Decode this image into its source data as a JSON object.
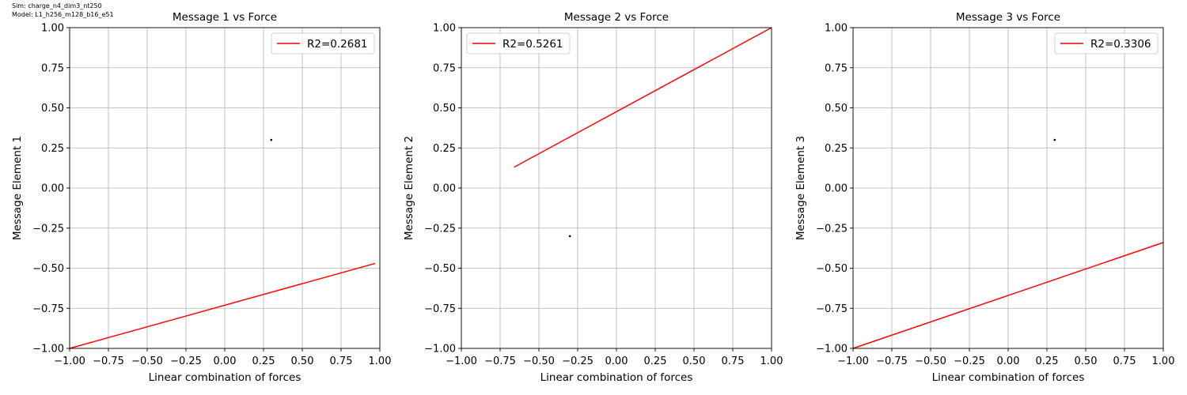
{
  "figure": {
    "sim_label": "Sim: charge_n4_dim3_nt250",
    "model_label": "Model: L1_h256_m128_b16_e51"
  },
  "chart_data": [
    {
      "type": "scatter",
      "title": "Message 1 vs Force",
      "xlabel": "Linear combination of forces",
      "ylabel": "Message Element 1",
      "xlim": [
        -1.0,
        1.0
      ],
      "ylim": [
        -1.0,
        1.0
      ],
      "xticks": [
        "−1.00",
        "−0.75",
        "−0.50",
        "−0.25",
        "0.00",
        "0.25",
        "0.50",
        "0.75",
        "1.00"
      ],
      "yticks": [
        "−1.00",
        "−0.75",
        "−0.50",
        "−0.25",
        "0.00",
        "0.25",
        "0.50",
        "0.75",
        "1.00"
      ],
      "grid": true,
      "legend_position": "top-right",
      "points": [
        {
          "x": 0.3,
          "y": 0.3
        }
      ],
      "fit_line": {
        "name": "R2=0.2681",
        "color": "#ff0000",
        "x": [
          -1.0,
          0.97
        ],
        "y": [
          -1.0,
          -0.47
        ]
      }
    },
    {
      "type": "scatter",
      "title": "Message 2 vs Force",
      "xlabel": "Linear combination of forces",
      "ylabel": "Message Element 2",
      "xlim": [
        -1.0,
        1.0
      ],
      "ylim": [
        -1.0,
        1.0
      ],
      "xticks": [
        "−1.00",
        "−0.75",
        "−0.50",
        "−0.25",
        "0.00",
        "0.25",
        "0.50",
        "0.75",
        "1.00"
      ],
      "yticks": [
        "−1.00",
        "−0.75",
        "−0.50",
        "−0.25",
        "0.00",
        "0.25",
        "0.50",
        "0.75",
        "1.00"
      ],
      "grid": true,
      "legend_position": "top-left",
      "points": [
        {
          "x": -0.3,
          "y": -0.3
        }
      ],
      "fit_line": {
        "name": "R2=0.5261",
        "color": "#ff0000",
        "x": [
          -0.66,
          1.0
        ],
        "y": [
          0.13,
          1.0
        ]
      }
    },
    {
      "type": "scatter",
      "title": "Message 3 vs Force",
      "xlabel": "Linear combination of forces",
      "ylabel": "Message Element 3",
      "xlim": [
        -1.0,
        1.0
      ],
      "ylim": [
        -1.0,
        1.0
      ],
      "xticks": [
        "−1.00",
        "−0.75",
        "−0.50",
        "−0.25",
        "0.00",
        "0.25",
        "0.50",
        "0.75",
        "1.00"
      ],
      "yticks": [
        "−1.00",
        "−0.75",
        "−0.50",
        "−0.25",
        "0.00",
        "0.25",
        "0.50",
        "0.75",
        "1.00"
      ],
      "grid": true,
      "legend_position": "top-right",
      "points": [
        {
          "x": 0.3,
          "y": 0.3
        }
      ],
      "fit_line": {
        "name": "R2=0.3306",
        "color": "#ff0000",
        "x": [
          -1.0,
          1.0
        ],
        "y": [
          -1.0,
          -0.34
        ]
      }
    }
  ]
}
